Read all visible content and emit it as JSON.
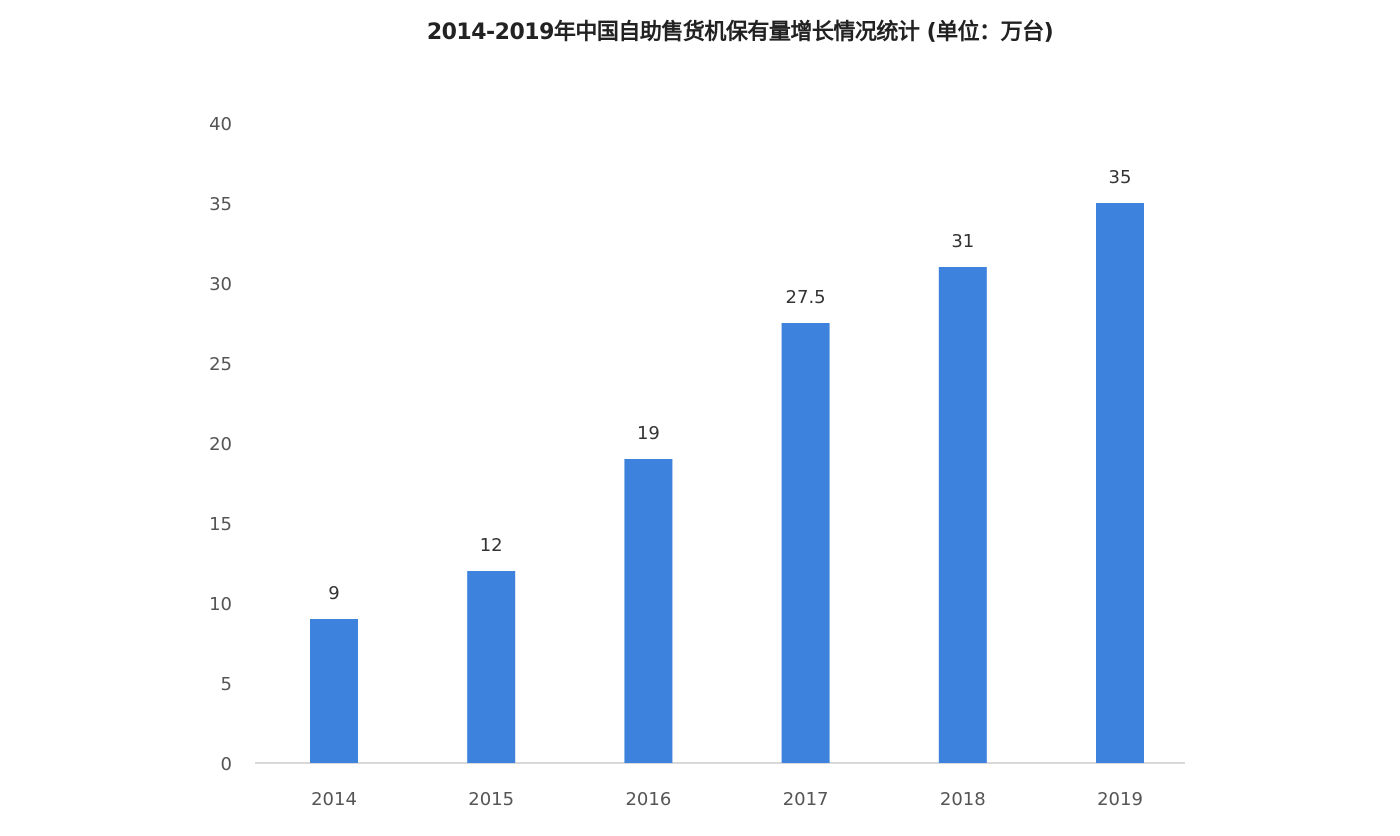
{
  "chart_data": {
    "type": "bar",
    "title": "2014-2019年中国自助售货机保有量增长情况统计 (单位：万台)",
    "categories": [
      "2014",
      "2015",
      "2016",
      "2017",
      "2018",
      "2019"
    ],
    "values": [
      9,
      12,
      19,
      27.5,
      31,
      35
    ],
    "data_labels": [
      "9",
      "12",
      "19",
      "27.5",
      "31",
      "35"
    ],
    "xlabel": "",
    "ylabel": "",
    "ylim": [
      0,
      40
    ],
    "yticks": [
      0,
      5,
      10,
      15,
      20,
      25,
      30,
      35,
      40
    ],
    "grid": false,
    "legend": "none",
    "bar_color": "#3d82dd"
  }
}
